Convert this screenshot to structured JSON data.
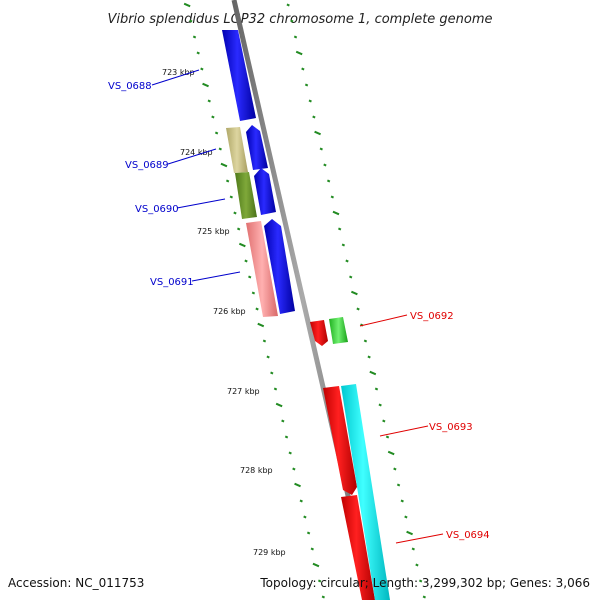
{
  "title": "Vibrio splendidus LGP32 chromosome 1, complete genome",
  "footer": {
    "accession": "Accession: NC_011753",
    "topology": "Topology: circular; Length: 3,299,302 bp; Genes: 3,066"
  },
  "ticks": [
    "723 kbp",
    "724 kbp",
    "725 kbp",
    "726 kbp",
    "727 kbp",
    "728 kbp",
    "729 kbp"
  ],
  "genes_left": [
    {
      "name": "VS_0688",
      "color": "#0000cc"
    },
    {
      "name": "VS_0689",
      "color": "#0000cc"
    },
    {
      "name": "VS_0690",
      "color": "#0000cc"
    },
    {
      "name": "VS_0691",
      "color": "#0000cc"
    }
  ],
  "genes_right": [
    {
      "name": "VS_0692",
      "color": "#e00000"
    },
    {
      "name": "VS_0693",
      "color": "#e00000"
    },
    {
      "name": "VS_0694",
      "color": "#e00000"
    }
  ],
  "colors": {
    "backbone": "#888888",
    "tick": "#228b22",
    "forward_cds": "#0000ee",
    "reverse_cds": "#ee0000",
    "cyan_cds": "#00e5ee",
    "khaki": "#bdb76b",
    "olive": "#6b8e23",
    "salmon": "#f08080",
    "green": "#32cd32"
  }
}
